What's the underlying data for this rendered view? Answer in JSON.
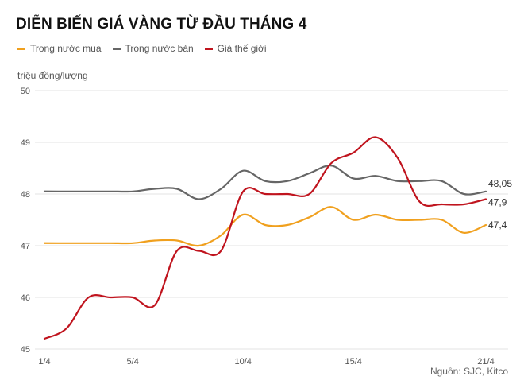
{
  "chart_data": {
    "type": "line",
    "title": "DIỄN BIẾN GIÁ VÀNG TỪ ĐẦU THÁNG 4",
    "ylabel": "triệu đồng/lượng",
    "xlabel": "",
    "source": "Nguồn: SJC, Kitco",
    "ylim": [
      45,
      50
    ],
    "yticks": [
      "45",
      "46",
      "47",
      "48",
      "49",
      "50"
    ],
    "xlim": [
      1,
      21
    ],
    "xticks": [
      {
        "x": 1,
        "label": "1/4"
      },
      {
        "x": 5,
        "label": "5/4"
      },
      {
        "x": 10,
        "label": "10/4"
      },
      {
        "x": 15,
        "label": "15/4"
      },
      {
        "x": 21,
        "label": "21/4"
      }
    ],
    "grid": true,
    "legend_position": "top-left",
    "series": [
      {
        "name": "Trong nước mua",
        "color": "#f0a01e",
        "end_label": "47,4",
        "points": [
          [
            1,
            47.05
          ],
          [
            2,
            47.05
          ],
          [
            3,
            47.05
          ],
          [
            4,
            47.05
          ],
          [
            5,
            47.05
          ],
          [
            6,
            47.1
          ],
          [
            7,
            47.1
          ],
          [
            8,
            47.0
          ],
          [
            9,
            47.2
          ],
          [
            10,
            47.6
          ],
          [
            11,
            47.4
          ],
          [
            12,
            47.4
          ],
          [
            13,
            47.55
          ],
          [
            14,
            47.75
          ],
          [
            15,
            47.5
          ],
          [
            16,
            47.6
          ],
          [
            17,
            47.5
          ],
          [
            18,
            47.5
          ],
          [
            19,
            47.5
          ],
          [
            20,
            47.25
          ],
          [
            21,
            47.4
          ]
        ]
      },
      {
        "name": "Trong nước bán",
        "color": "#666666",
        "end_label": "48,05",
        "points": [
          [
            1,
            48.05
          ],
          [
            2,
            48.05
          ],
          [
            3,
            48.05
          ],
          [
            4,
            48.05
          ],
          [
            5,
            48.05
          ],
          [
            6,
            48.1
          ],
          [
            7,
            48.1
          ],
          [
            8,
            47.9
          ],
          [
            9,
            48.1
          ],
          [
            10,
            48.45
          ],
          [
            11,
            48.25
          ],
          [
            12,
            48.25
          ],
          [
            13,
            48.4
          ],
          [
            14,
            48.55
          ],
          [
            15,
            48.3
          ],
          [
            16,
            48.35
          ],
          [
            17,
            48.25
          ],
          [
            18,
            48.25
          ],
          [
            19,
            48.25
          ],
          [
            20,
            48.0
          ],
          [
            21,
            48.05
          ]
        ]
      },
      {
        "name": "Giá thế giới",
        "color": "#c0141e",
        "end_label": "47,9",
        "points": [
          [
            1,
            45.2
          ],
          [
            2,
            45.4
          ],
          [
            3,
            46.0
          ],
          [
            4,
            46.0
          ],
          [
            5,
            46.0
          ],
          [
            6,
            45.85
          ],
          [
            7,
            46.9
          ],
          [
            8,
            46.9
          ],
          [
            9,
            46.9
          ],
          [
            10,
            48.05
          ],
          [
            11,
            48.0
          ],
          [
            12,
            48.0
          ],
          [
            13,
            48.0
          ],
          [
            14,
            48.6
          ],
          [
            15,
            48.8
          ],
          [
            16,
            49.1
          ],
          [
            17,
            48.7
          ],
          [
            18,
            47.85
          ],
          [
            19,
            47.8
          ],
          [
            20,
            47.8
          ],
          [
            21,
            47.9
          ]
        ]
      }
    ]
  }
}
